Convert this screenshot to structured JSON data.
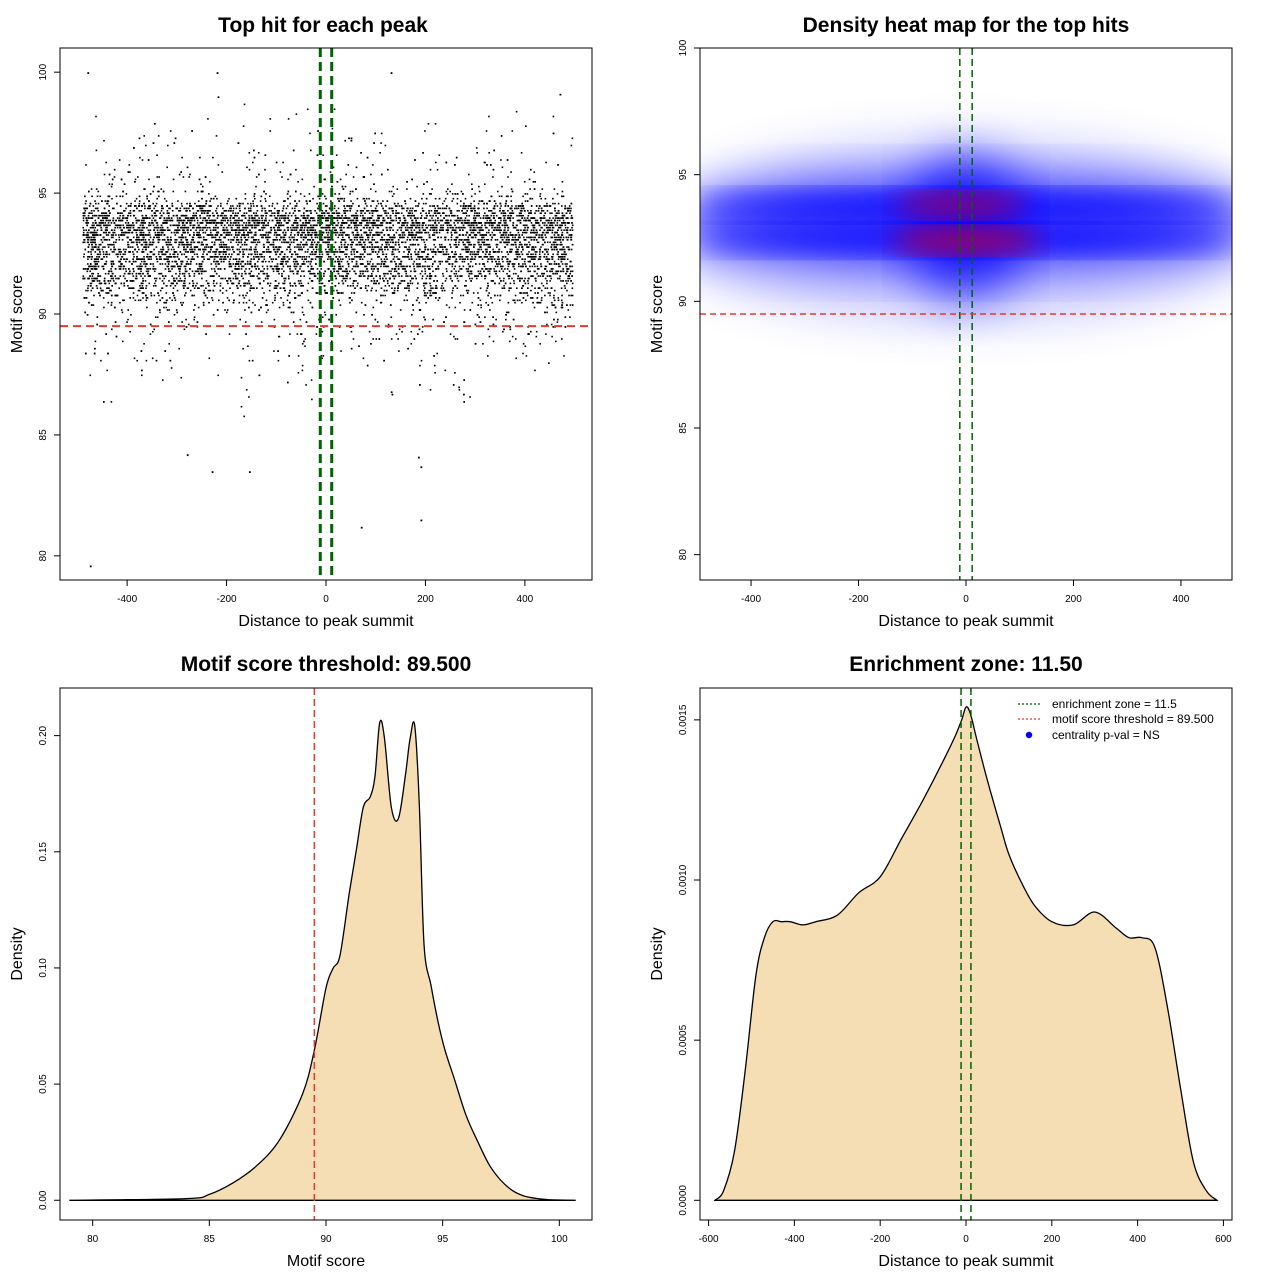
{
  "colors": {
    "background": "#ffffff",
    "points": "#000000",
    "enrichment_zone": "#006400",
    "threshold": "#e53935",
    "density_fill": "#f5deb3",
    "density_line": "#000000",
    "heat_low": "#ffffff",
    "heat_mid": "#0000ff",
    "heat_high": "#ff0000",
    "centrality_dot": "#0000ff"
  },
  "chart_data": [
    {
      "id": "scatter",
      "type": "scatter",
      "title": "Top hit for each peak",
      "xlabel": "Distance to peak summit",
      "ylabel": "Motif score",
      "xlim": [
        -535,
        535
      ],
      "ylim": [
        79,
        101
      ],
      "xticks": [
        -400,
        -200,
        0,
        200,
        400
      ],
      "yticks": [
        80,
        85,
        90,
        95,
        100
      ],
      "x_range_of_points": [
        -490,
        495
      ],
      "point_count_approx": 9000,
      "score_peaks": [
        92.3,
        93.8
      ],
      "outlier_points": [
        {
          "x": -475,
          "y": 79.6
        },
        {
          "x": -280,
          "y": 84.2
        },
        {
          "x": -230,
          "y": 83.5
        },
        {
          "x": -155,
          "y": 83.5
        },
        {
          "x": 70,
          "y": 81.2
        },
        {
          "x": 185,
          "y": 84.1
        },
        {
          "x": 190,
          "y": 83.7
        },
        {
          "x": 190,
          "y": 81.5
        },
        {
          "x": -480,
          "y": 100.0
        },
        {
          "x": -220,
          "y": 100.0
        },
        {
          "x": 130,
          "y": 100.0
        }
      ],
      "enrichment_zone": [
        -11.5,
        11.5
      ],
      "threshold": 89.5,
      "grid": false
    },
    {
      "id": "heatmap",
      "type": "heatmap",
      "title": "Density heat map for the top hits",
      "xlabel": "Distance to peak summit",
      "ylabel": "Motif score",
      "xlim": [
        -495,
        495
      ],
      "ylim": [
        79,
        100
      ],
      "xticks": [
        -400,
        -200,
        0,
        200,
        400
      ],
      "yticks": [
        80,
        85,
        90,
        95,
        100
      ],
      "hotspots": [
        {
          "x": 0,
          "y": 92.4,
          "intensity": 1.0
        },
        {
          "x": -10,
          "y": 93.8,
          "intensity": 0.8
        }
      ],
      "enrichment_zone": [
        -11.5,
        11.5
      ],
      "threshold": 89.5,
      "grid": false
    },
    {
      "id": "score_density",
      "type": "area",
      "title": "Motif score threshold: 89.500",
      "xlabel": "Motif score",
      "ylabel": "Density",
      "xlim": [
        78.6,
        101.4
      ],
      "ylim": [
        -0.0085,
        0.2205
      ],
      "xticks": [
        80,
        85,
        90,
        95,
        100
      ],
      "yticks": [
        "0.00",
        "0.05",
        "0.10",
        "0.15",
        "0.20"
      ],
      "x": [
        79,
        84,
        85,
        86,
        87,
        88,
        89,
        89.5,
        90,
        90.3,
        90.6,
        91,
        91.3,
        91.6,
        91.9,
        92.1,
        92.3,
        92.5,
        92.8,
        93.1,
        93.4,
        93.6,
        93.8,
        94.0,
        94.2,
        94.5,
        94.8,
        95.1,
        95.5,
        96.0,
        96.5,
        97.0,
        97.5,
        98.0,
        98.5,
        99.0,
        99.5,
        100.0,
        100.7
      ],
      "y": [
        0.0,
        0.0007,
        0.0025,
        0.0074,
        0.0146,
        0.0258,
        0.0459,
        0.0645,
        0.0914,
        0.0998,
        0.1054,
        0.1323,
        0.1507,
        0.1692,
        0.1737,
        0.1826,
        0.2055,
        0.1994,
        0.1692,
        0.1642,
        0.1826,
        0.1984,
        0.2044,
        0.1703,
        0.1103,
        0.0925,
        0.0769,
        0.0646,
        0.0523,
        0.0366,
        0.0253,
        0.0152,
        0.0085,
        0.0041,
        0.0018,
        0.0008,
        0.0003,
        0.0001,
        0.0
      ],
      "threshold": 89.5,
      "grid": false
    },
    {
      "id": "distance_density",
      "type": "area",
      "title": "Enrichment zone: 11.50",
      "xlabel": "Distance to peak summit",
      "ylabel": "Density",
      "xlim": [
        -620,
        620
      ],
      "ylim": [
        -6.15e-05,
        0.0015995
      ],
      "xticks": [
        -600,
        -400,
        -200,
        0,
        200,
        400,
        600
      ],
      "yticks": [
        "0.0000",
        "0.0005",
        "0.0010",
        "0.0015"
      ],
      "x": [
        -585,
        -565,
        -540,
        -515,
        -490,
        -470,
        -450,
        -430,
        -410,
        -380,
        -350,
        -300,
        -250,
        -200,
        -150,
        -100,
        -50,
        -25,
        -10,
        0,
        10,
        25,
        50,
        80,
        100,
        130,
        160,
        200,
        250,
        300,
        350,
        380,
        410,
        440,
        470,
        500,
        530,
        560,
        585
      ],
      "y": [
        0.0,
        3e-05,
        0.00015,
        0.0004,
        0.0007,
        0.00082,
        0.00087,
        0.00087,
        0.00087,
        0.00086,
        0.00087,
        0.00089,
        0.00096,
        0.00101,
        0.00113,
        0.00125,
        0.00138,
        0.00145,
        0.0015,
        0.00154,
        0.00152,
        0.00144,
        0.00131,
        0.00117,
        0.00108,
        0.00099,
        0.00092,
        0.00087,
        0.00086,
        0.0009,
        0.00085,
        0.00082,
        0.00082,
        0.00079,
        0.0006,
        0.00035,
        0.00012,
        3e-05,
        0.0
      ],
      "enrichment_zone": [
        -11.5,
        11.5
      ],
      "legend": {
        "placement": "top-right",
        "items": [
          {
            "label": "enrichment zone = 11.5",
            "style": "dotted",
            "color": "#006400"
          },
          {
            "label": "motif score threshold = 89.500",
            "style": "dotted",
            "color": "#e53935"
          },
          {
            "label": "centrality p-val = NS",
            "style": "dot",
            "color": "#0000ff"
          }
        ]
      },
      "grid": false
    }
  ]
}
